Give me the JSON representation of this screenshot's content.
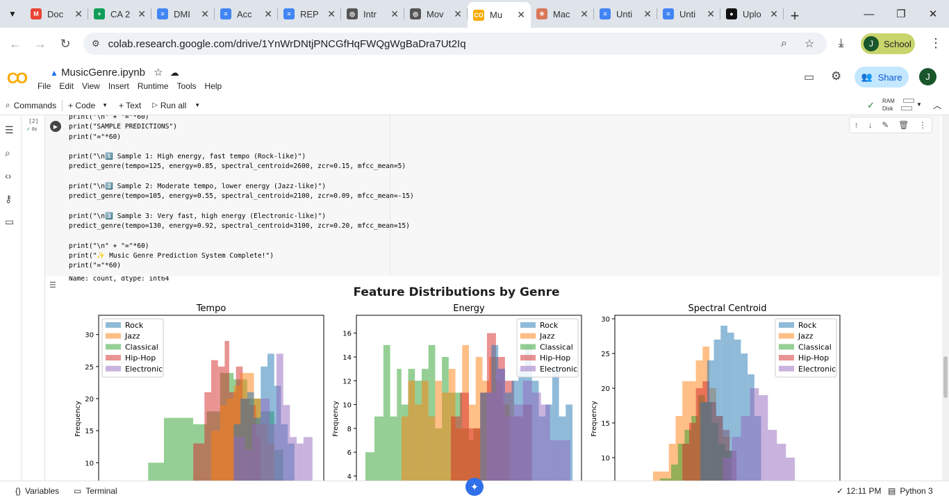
{
  "browser": {
    "tabs": [
      {
        "title": "Doc",
        "icon": "gmail-icon",
        "color": "#ea4335",
        "glyph": "M"
      },
      {
        "title": "CA 2",
        "icon": "sheets-icon",
        "color": "#0f9d58",
        "glyph": "+"
      },
      {
        "title": "DMI",
        "icon": "docs-icon",
        "color": "#4285f4",
        "glyph": "≡"
      },
      {
        "title": "Acc",
        "icon": "docs-icon",
        "color": "#4285f4",
        "glyph": "≡"
      },
      {
        "title": "REP",
        "icon": "docs-icon",
        "color": "#4285f4",
        "glyph": "≡"
      },
      {
        "title": "Intr",
        "icon": "chatgpt-icon",
        "color": "#555555",
        "glyph": "◎"
      },
      {
        "title": "Mov",
        "icon": "chatgpt-icon",
        "color": "#555555",
        "glyph": "◎"
      },
      {
        "title": "Mu",
        "icon": "colab-icon",
        "color": "#f9ab00",
        "glyph": "CO"
      },
      {
        "title": "Mac",
        "icon": "claude-icon",
        "color": "#d97757",
        "glyph": "✳"
      },
      {
        "title": "Unti",
        "icon": "docs-icon",
        "color": "#4285f4",
        "glyph": "≡"
      },
      {
        "title": "Unti",
        "icon": "docs-icon",
        "color": "#4285f4",
        "glyph": "≡"
      },
      {
        "title": "Uplo",
        "icon": "github-icon",
        "color": "#111111",
        "glyph": "●"
      }
    ],
    "active_tab": 7,
    "url": "colab.research.google.com/drive/1YnWrDNtjPNCGfHqFWQgWgBaDra7Ut2Iq",
    "profile_initial": "J",
    "profile_label": "School"
  },
  "colab": {
    "filename": "MusicGenre.ipynb",
    "menus": [
      "File",
      "Edit",
      "View",
      "Insert",
      "Runtime",
      "Tools",
      "Help"
    ],
    "share_label": "Share",
    "user_initial": "J",
    "toolbar": {
      "commands": "Commands",
      "code": "+ Code",
      "text": "+ Text",
      "run_all": "Run all",
      "ram": "RAM",
      "disk": "Disk"
    },
    "cell": {
      "exec_count": "[2]",
      "exec_time": "8s",
      "code": "print(\"\\n\" + \"=\"*60)\nprint(\"SAMPLE PREDICTIONS\")\nprint(\"=\"*60)\n\nprint(\"\\n1️⃣ Sample 1: High energy, fast tempo (Rock-like)\")\npredict_genre(tempo=125, energy=0.85, spectral_centroid=2600, zcr=0.15, mfcc_mean=5)\n\nprint(\"\\n2️⃣ Sample 2: Moderate tempo, lower energy (Jazz-like)\")\npredict_genre(tempo=105, energy=0.55, spectral_centroid=2100, zcr=0.09, mfcc_mean=-15)\n\nprint(\"\\n3️⃣ Sample 3: Very fast, high energy (Electronic-like)\")\npredict_genre(tempo=130, energy=0.92, spectral_centroid=3100, zcr=0.20, mfcc_mean=15)\n\nprint(\"\\n\" + \"=\"*60)\nprint(\"✨ Music Genre Prediction System Complete!\")\nprint(\"=\"*60)",
      "output_text": "Name: count, dtype: int64"
    },
    "status": {
      "variables": "Variables",
      "terminal": "Terminal",
      "time": "12:11 PM",
      "runtime": "Python 3"
    }
  },
  "chart_data": {
    "type": "bar",
    "suptitle": "Feature Distributions by Genre",
    "genres": [
      "Rock",
      "Jazz",
      "Classical",
      "Hip-Hop",
      "Electronic"
    ],
    "colors": {
      "Rock": "#1f77b4",
      "Jazz": "#ff7f0e",
      "Classical": "#2ca02c",
      "Hip-Hop": "#d62728",
      "Electronic": "#9467bd"
    },
    "alpha": 0.5,
    "subplots": [
      {
        "title": "Tempo",
        "ylabel": "Frequency",
        "ylim": [
          7,
          33
        ],
        "yticks": [
          10,
          15,
          20,
          25,
          30
        ],
        "legend": "top-left",
        "series": {
          "Classical": [
            [
              0.22,
              0.29,
              10
            ],
            [
              0.29,
              0.36,
              17
            ],
            [
              0.36,
              0.42,
              17
            ],
            [
              0.42,
              0.48,
              16
            ],
            [
              0.48,
              0.54,
              18
            ],
            [
              0.54,
              0.6,
              24
            ],
            [
              0.6,
              0.66,
              23
            ],
            [
              0.66,
              0.72,
              20
            ],
            [
              0.72,
              0.78,
              18
            ],
            [
              0.78,
              0.82,
              12
            ]
          ],
          "Hip-Hop": [
            [
              0.42,
              0.47,
              13
            ],
            [
              0.47,
              0.5,
              21
            ],
            [
              0.5,
              0.53,
              26
            ],
            [
              0.53,
              0.56,
              25
            ],
            [
              0.56,
              0.58,
              29
            ],
            [
              0.58,
              0.61,
              21
            ],
            [
              0.61,
              0.64,
              25
            ],
            [
              0.64,
              0.67,
              20
            ],
            [
              0.67,
              0.7,
              19
            ],
            [
              0.7,
              0.72,
              14
            ]
          ],
          "Jazz": [
            [
              0.5,
              0.54,
              15
            ],
            [
              0.54,
              0.57,
              19
            ],
            [
              0.57,
              0.6,
              20
            ],
            [
              0.6,
              0.63,
              22
            ],
            [
              0.63,
              0.66,
              24
            ],
            [
              0.66,
              0.69,
              24
            ],
            [
              0.69,
              0.72,
              20
            ],
            [
              0.72,
              0.75,
              16
            ],
            [
              0.75,
              0.78,
              13
            ]
          ],
          "Rock": [
            [
              0.6,
              0.63,
              16
            ],
            [
              0.63,
              0.66,
              20
            ],
            [
              0.66,
              0.69,
              21
            ],
            [
              0.69,
              0.72,
              17
            ],
            [
              0.72,
              0.75,
              25
            ],
            [
              0.75,
              0.78,
              27
            ],
            [
              0.78,
              0.81,
              22
            ],
            [
              0.81,
              0.84,
              16
            ],
            [
              0.84,
              0.87,
              13
            ]
          ],
          "Electronic": [
            [
              0.6,
              0.65,
              14
            ],
            [
              0.65,
              0.68,
              12
            ],
            [
              0.68,
              0.72,
              16
            ],
            [
              0.72,
              0.76,
              20
            ],
            [
              0.76,
              0.79,
              16
            ],
            [
              0.79,
              0.82,
              27
            ],
            [
              0.82,
              0.85,
              19
            ],
            [
              0.85,
              0.88,
              14
            ],
            [
              0.88,
              0.91,
              13
            ],
            [
              0.91,
              0.95,
              14
            ]
          ]
        }
      },
      {
        "title": "Energy",
        "ylabel": "Frequency",
        "ylim": [
          3.5,
          17.5
        ],
        "yticks": [
          4,
          6,
          8,
          10,
          12,
          14,
          16
        ],
        "legend": "top-right",
        "series": {
          "Classical": [
            [
              0.04,
              0.08,
              6
            ],
            [
              0.08,
              0.1,
              9
            ],
            [
              0.1,
              0.12,
              9
            ],
            [
              0.12,
              0.15,
              15
            ],
            [
              0.15,
              0.18,
              9
            ],
            [
              0.18,
              0.2,
              13
            ],
            [
              0.2,
              0.23,
              10
            ],
            [
              0.23,
              0.26,
              13
            ],
            [
              0.26,
              0.29,
              12
            ],
            [
              0.29,
              0.32,
              13
            ],
            [
              0.32,
              0.35,
              15
            ],
            [
              0.35,
              0.38,
              8
            ],
            [
              0.38,
              0.41,
              14
            ],
            [
              0.41,
              0.44,
              11
            ],
            [
              0.44,
              0.47,
              11
            ],
            [
              0.47,
              0.5,
              8
            ],
            [
              0.5,
              0.52,
              7
            ],
            [
              0.52,
              0.55,
              8
            ]
          ],
          "Jazz": [
            [
              0.2,
              0.23,
              9
            ],
            [
              0.23,
              0.26,
              12
            ],
            [
              0.26,
              0.29,
              10
            ],
            [
              0.29,
              0.32,
              12
            ],
            [
              0.32,
              0.35,
              9
            ],
            [
              0.35,
              0.38,
              12
            ],
            [
              0.38,
              0.41,
              11
            ],
            [
              0.41,
              0.44,
              13
            ],
            [
              0.44,
              0.47,
              8
            ],
            [
              0.47,
              0.5,
              15
            ],
            [
              0.5,
              0.53,
              10
            ],
            [
              0.53,
              0.56,
              14
            ],
            [
              0.56,
              0.59,
              12
            ],
            [
              0.59,
              0.62,
              14
            ],
            [
              0.62,
              0.65,
              12
            ],
            [
              0.65,
              0.68,
              10
            ]
          ],
          "Hip-Hop": [
            [
              0.42,
              0.46,
              9
            ],
            [
              0.46,
              0.5,
              11
            ],
            [
              0.5,
              0.55,
              8
            ],
            [
              0.55,
              0.58,
              11
            ],
            [
              0.58,
              0.62,
              16
            ],
            [
              0.62,
              0.66,
              14
            ],
            [
              0.66,
              0.7,
              12
            ],
            [
              0.7,
              0.74,
              9
            ],
            [
              0.74,
              0.78,
              10
            ]
          ],
          "Rock": [
            [
              0.55,
              0.6,
              11
            ],
            [
              0.6,
              0.63,
              15
            ],
            [
              0.63,
              0.66,
              13
            ],
            [
              0.66,
              0.69,
              11
            ],
            [
              0.69,
              0.72,
              12
            ],
            [
              0.72,
              0.75,
              13
            ],
            [
              0.75,
              0.78,
              15
            ],
            [
              0.78,
              0.81,
              12
            ],
            [
              0.81,
              0.84,
              9
            ],
            [
              0.84,
              0.87,
              10
            ],
            [
              0.87,
              0.9,
              13
            ],
            [
              0.9,
              0.93,
              9
            ],
            [
              0.93,
              0.96,
              10
            ]
          ],
          "Electronic": [
            [
              0.58,
              0.62,
              11
            ],
            [
              0.62,
              0.66,
              13
            ],
            [
              0.66,
              0.7,
              9
            ],
            [
              0.7,
              0.74,
              10
            ],
            [
              0.74,
              0.78,
              12
            ],
            [
              0.78,
              0.82,
              11
            ],
            [
              0.82,
              0.86,
              10
            ],
            [
              0.86,
              0.9,
              7
            ],
            [
              0.9,
              0.95,
              7
            ]
          ]
        }
      },
      {
        "title": "Spectral Centroid",
        "ylabel": "Frequency",
        "ylim": [
          6.5,
          30.5
        ],
        "yticks": [
          10,
          15,
          20,
          25,
          30
        ],
        "legend": "top-right",
        "series": {
          "Jazz": [
            [
              0.17,
              0.24,
              8
            ],
            [
              0.24,
              0.27,
              12
            ],
            [
              0.27,
              0.3,
              16
            ],
            [
              0.3,
              0.33,
              21
            ],
            [
              0.33,
              0.36,
              21
            ],
            [
              0.36,
              0.39,
              24
            ],
            [
              0.39,
              0.42,
              26
            ],
            [
              0.42,
              0.45,
              20
            ],
            [
              0.45,
              0.48,
              16
            ],
            [
              0.48,
              0.51,
              13
            ]
          ],
          "Classical": [
            [
              0.2,
              0.25,
              7
            ],
            [
              0.25,
              0.28,
              9
            ],
            [
              0.28,
              0.31,
              12
            ],
            [
              0.31,
              0.34,
              14
            ],
            [
              0.34,
              0.37,
              16
            ],
            [
              0.37,
              0.4,
              19
            ],
            [
              0.4,
              0.43,
              18
            ],
            [
              0.43,
              0.46,
              15
            ],
            [
              0.46,
              0.49,
              12
            ],
            [
              0.49,
              0.52,
              11
            ]
          ],
          "Hip-Hop": [
            [
              0.3,
              0.33,
              12
            ],
            [
              0.33,
              0.36,
              15
            ],
            [
              0.36,
              0.39,
              20
            ],
            [
              0.39,
              0.42,
              21
            ],
            [
              0.42,
              0.45,
              18
            ],
            [
              0.45,
              0.48,
              16
            ],
            [
              0.48,
              0.51,
              14
            ],
            [
              0.51,
              0.54,
              11
            ]
          ],
          "Rock": [
            [
              0.38,
              0.41,
              18
            ],
            [
              0.41,
              0.44,
              24
            ],
            [
              0.44,
              0.47,
              27
            ],
            [
              0.47,
              0.5,
              29
            ],
            [
              0.5,
              0.53,
              28
            ],
            [
              0.53,
              0.56,
              27
            ],
            [
              0.56,
              0.59,
              25
            ],
            [
              0.59,
              0.62,
              22
            ],
            [
              0.62,
              0.65,
              16
            ]
          ],
          "Electronic": [
            [
              0.48,
              0.52,
              10
            ],
            [
              0.52,
              0.56,
              13
            ],
            [
              0.56,
              0.6,
              16
            ],
            [
              0.6,
              0.64,
              20
            ],
            [
              0.64,
              0.68,
              19
            ],
            [
              0.68,
              0.72,
              14
            ],
            [
              0.72,
              0.76,
              12
            ],
            [
              0.76,
              0.8,
              10
            ]
          ]
        }
      }
    ]
  }
}
